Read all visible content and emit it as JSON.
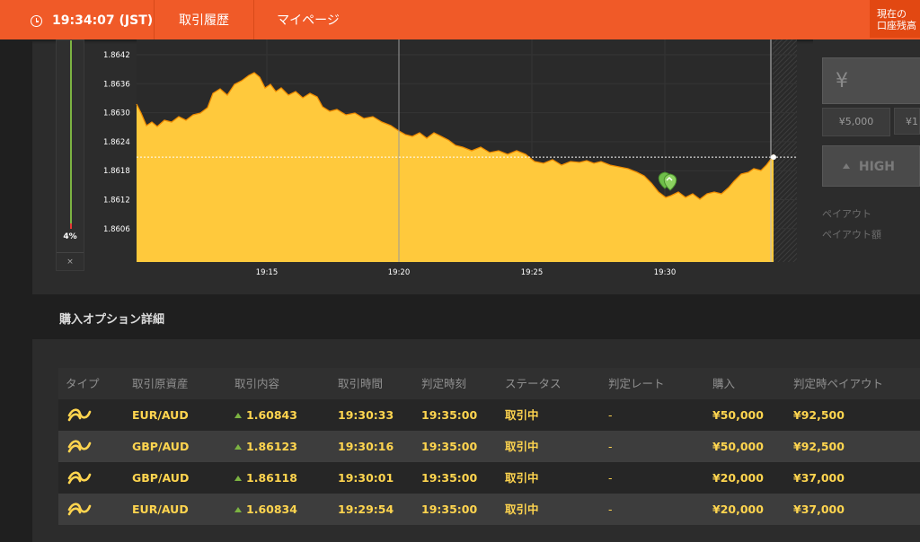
{
  "topbar": {
    "clock": "19:34:07 (JST)",
    "nav": [
      "取引履歴",
      "マイページ"
    ],
    "balance_label_line1": "現在の",
    "balance_label_line2": "口座残高"
  },
  "gauge": {
    "percent_label": "4%",
    "close": "×"
  },
  "chart_data": {
    "type": "area",
    "y_ticks": [
      "1.8642",
      "1.8636",
      "1.8630",
      "1.8624",
      "1.8618",
      "1.8612",
      "1.8606"
    ],
    "x_ticks": [
      "19:15",
      "19:20",
      "19:25",
      "19:30"
    ],
    "area_color": "#ffc93c",
    "current_level": 1.86208
  },
  "right_panel": {
    "amount_symbol": "¥",
    "quick_amount": "¥5,000",
    "quick_amount_next": "¥1",
    "high_label": "HIGH",
    "payout_label": "ペイアウト",
    "payout_amount_label": "ペイアウト額"
  },
  "details": {
    "title": "購入オプション詳細",
    "columns": [
      "タイプ",
      "取引原資産",
      "取引内容",
      "取引時間",
      "判定時刻",
      "ステータス",
      "判定レート",
      "購入",
      "判定時ペイアウト"
    ],
    "rows": [
      {
        "asset": "EUR/AUD",
        "rate": "1.60843",
        "time": "19:30:33",
        "judge": "19:35:00",
        "status": "取引中",
        "judge_rate": "-",
        "purchase": "¥50,000",
        "payout": "¥92,500"
      },
      {
        "asset": "GBP/AUD",
        "rate": "1.86123",
        "time": "19:30:16",
        "judge": "19:35:00",
        "status": "取引中",
        "judge_rate": "-",
        "purchase": "¥50,000",
        "payout": "¥92,500"
      },
      {
        "asset": "GBP/AUD",
        "rate": "1.86118",
        "time": "19:30:01",
        "judge": "19:35:00",
        "status": "取引中",
        "judge_rate": "-",
        "purchase": "¥20,000",
        "payout": "¥37,000"
      },
      {
        "asset": "EUR/AUD",
        "rate": "1.60834",
        "time": "19:29:54",
        "judge": "19:35:00",
        "status": "取引中",
        "judge_rate": "-",
        "purchase": "¥20,000",
        "payout": "¥37,000"
      }
    ]
  }
}
